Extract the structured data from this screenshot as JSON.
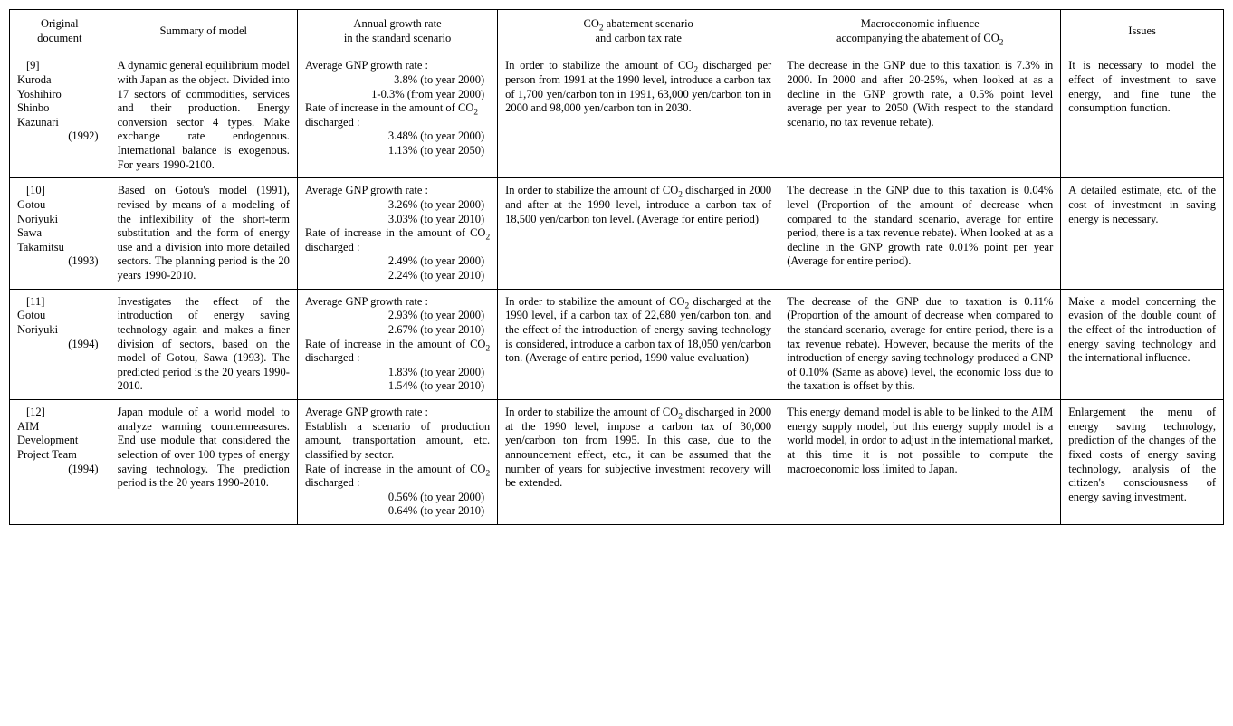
{
  "columns": [
    "Original\ndocument",
    "Summary of model",
    "Annual growth rate\nin the standard scenario",
    "CO₂ abatement scenario\nand carbon tax rate",
    "Macroeconomic influence\naccompanying the abatement of CO₂",
    "Issues"
  ],
  "rows": [
    {
      "doc": {
        "ref": "[9]",
        "authors": "Kuroda\nYoshihiro\nShinbo\nKazunari",
        "year": "(1992)"
      },
      "summary": "A dynamic general equilibrium model with Japan as the object. Divided into 17 sectors of commodities, services and their production. Energy conversion sector 4 types. Make exchange rate endogenous. International balance is exogenous. For years 1990-2100.",
      "growth": {
        "gnp_label": "Average GNP growth rate :",
        "gnp_lines": [
          "3.8% (to year 2000)",
          "1-0.3% (from year 2000)"
        ],
        "co2_label": "Rate of increase in the amount of CO₂ discharged :",
        "co2_lines": [
          "3.48% (to year 2000)",
          "1.13% (to year 2050)"
        ]
      },
      "abatement": "In order to stabilize the amount of CO₂ discharged per person from 1991 at the 1990 level, introduce a carbon tax of 1,700 yen/carbon ton in 1991, 63,000 yen/carbon ton in 2000 and 98,000 yen/carbon ton in 2030.",
      "macro": "The decrease in the GNP due to this taxation is 7.3% in 2000. In 2000 and after 20-25%, when looked at as a decline in the GNP growth rate, a 0.5% point level average per year to 2050 (With respect to the standard scenario, no tax revenue rebate).",
      "issues": "It is necessary to model the effect of investment to save energy, and fine tune the consumption function."
    },
    {
      "doc": {
        "ref": "[10]",
        "authors": "Gotou\nNoriyuki\nSawa\nTakamitsu",
        "year": "(1993)"
      },
      "summary": "Based on Gotou's model (1991), revised by means of a modeling of the inflexibility of the short-term substitution and the form of energy use and a division into more detailed sectors. The planning period is the 20 years 1990-2010.",
      "growth": {
        "gnp_label": "Average GNP growth rate :",
        "gnp_lines": [
          "3.26% (to year 2000)",
          "3.03% (to year 2010)"
        ],
        "co2_label": "Rate of increase in the amount of CO₂ discharged :",
        "co2_lines": [
          "2.49% (to year 2000)",
          "2.24% (to year 2010)"
        ]
      },
      "abatement": "In order to stabilize the amount of CO₂ discharged in 2000 and after at the 1990 level, introduce a carbon tax of 18,500 yen/carbon ton level. (Average for entire period)",
      "macro": "The decrease in the GNP due to this taxation is 0.04% level (Proportion of the amount of decrease when compared to the standard scenario, average for entire period, there is a tax revenue rebate). When looked at as a decline in the GNP growth rate 0.01% point per year (Average for entire period).",
      "issues": "A detailed estimate, etc. of the cost of investment in saving energy is necessary."
    },
    {
      "doc": {
        "ref": "[11]",
        "authors": "Gotou\nNoriyuki",
        "year": "(1994)"
      },
      "summary": "Investigates the effect of the introduction of energy saving technology again and makes a finer division of sectors, based on the model of Gotou, Sawa (1993). The predicted period is the 20 years 1990-2010.",
      "growth": {
        "gnp_label": "Average GNP growth rate :",
        "gnp_lines": [
          "2.93% (to year 2000)",
          "2.67% (to year 2010)"
        ],
        "co2_label": "Rate of increase in the amount of CO₂ discharged :",
        "co2_lines": [
          "1.83% (to year 2000)",
          "1.54% (to year 2010)"
        ]
      },
      "abatement": "In order to stabilize the amount of CO₂ discharged at the 1990 level, if a carbon tax of 22,680 yen/carbon ton, and the effect of the introduction of energy saving technology is considered, introduce a carbon tax of 18,050 yen/carbon ton. (Average of entire period, 1990 value evaluation)",
      "macro": "The decrease of the GNP due to taxation is 0.11% (Proportion of the amount of decrease when compared to the standard scenario, average for entire period, there is a tax revenue rebate). However, because the merits of the introduction of energy saving technology produced a GNP of 0.10% (Same as above) level, the economic loss due to the taxation is offset by this.",
      "issues": "Make a model concerning the evasion of the double count of the effect of the introduction of energy saving technology and the international influence."
    },
    {
      "doc": {
        "ref": "[12]",
        "authors": "AIM\nDevelopment\nProject Team",
        "year": "(1994)"
      },
      "summary": "Japan module of a world model to analyze warming countermeasures. End use module that considered the selection of over 100 types of energy saving technology. The prediction period is the 20 years 1990-2010.",
      "growth": {
        "gnp_label": "Average GNP growth rate :",
        "gnp_text": "Establish a scenario of production amount, transportation amount, etc. classified by sector.",
        "co2_label": "Rate of increase in the amount of CO₂ discharged :",
        "co2_lines": [
          "0.56% (to year 2000)",
          "0.64% (to year 2010)"
        ]
      },
      "abatement": "In order to stabilize the amount of CO₂ discharged in 2000 at the 1990 level, impose a carbon tax of 30,000 yen/carbon ton from 1995. In this case, due to the announcement effect, etc., it can be assumed that the number of years for subjective investment recovery will be extended.",
      "macro": "This energy demand model is able to be linked to the AIM energy supply model, but this energy supply model is a world model, in ordor to adjust in the international market, at this time it is not possible to compute the macroeconomic loss limited to Japan.",
      "issues": "Enlargement the menu of energy saving technology, prediction of the changes of the fixed costs of energy saving technology, analysis of the citizen's consciousness of energy saving investment."
    }
  ],
  "style": {
    "font_family": "Times New Roman",
    "font_size_pt": 10,
    "border_color": "#000000",
    "background_color": "#ffffff",
    "text_color": "#000000"
  }
}
